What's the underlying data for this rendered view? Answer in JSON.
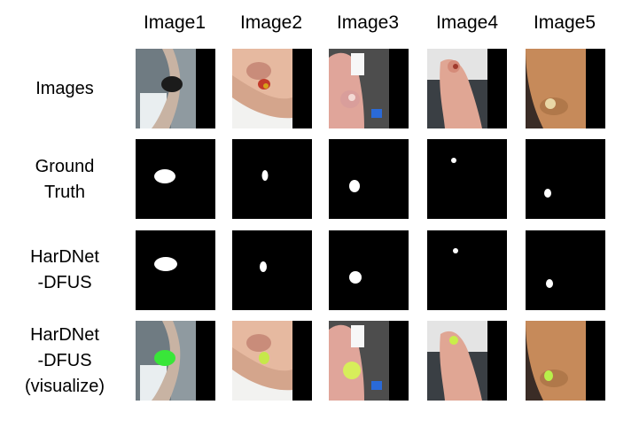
{
  "columns": [
    "Image1",
    "Image2",
    "Image3",
    "Image4",
    "Image5"
  ],
  "rows": [
    {
      "label_lines": [
        "Images"
      ]
    },
    {
      "label_lines": [
        "Ground",
        "Truth"
      ]
    },
    {
      "label_lines": [
        "HarDNet",
        "-DFUS"
      ]
    },
    {
      "label_lines": [
        "HarDNet",
        "-DFUS",
        "(visualize)"
      ]
    }
  ],
  "colors": {
    "background": "#ffffff",
    "mask_background": "#000000",
    "mask_foreground": "#ffffff",
    "overlay": "#39e639"
  }
}
